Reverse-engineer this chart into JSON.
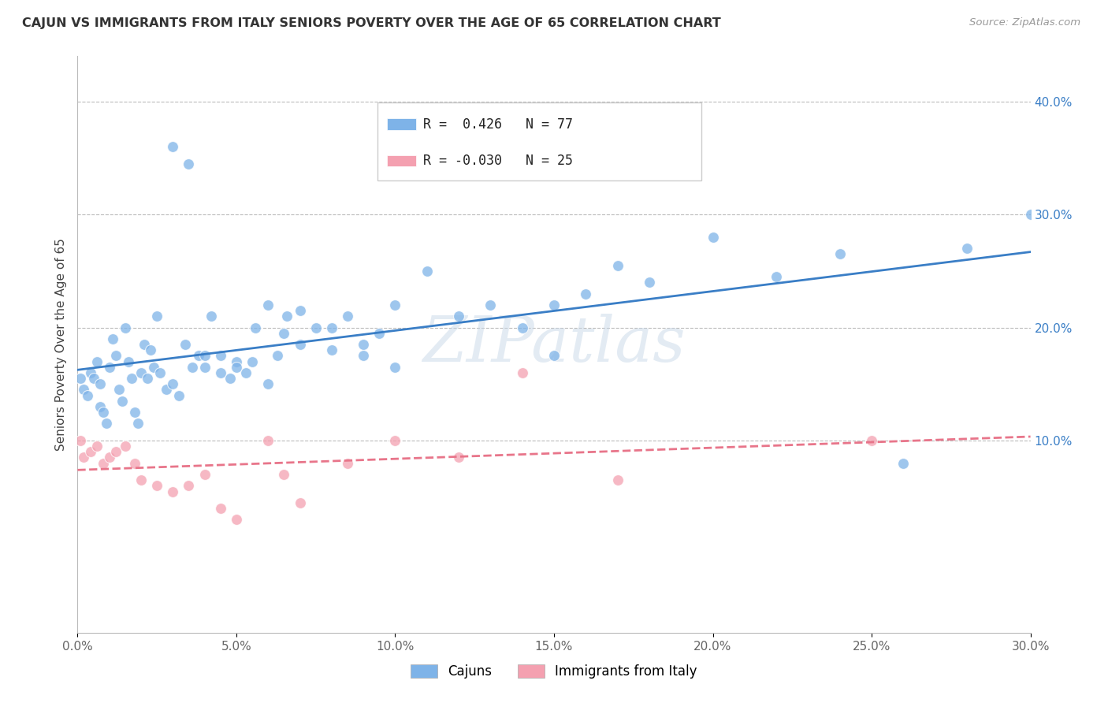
{
  "title": "CAJUN VS IMMIGRANTS FROM ITALY SENIORS POVERTY OVER THE AGE OF 65 CORRELATION CHART",
  "source": "Source: ZipAtlas.com",
  "ylabel": "Seniors Poverty Over the Age of 65",
  "cajun_R": 0.426,
  "cajun_N": 77,
  "italy_R": -0.03,
  "italy_N": 25,
  "cajun_color": "#7EB3E8",
  "italy_color": "#F4A0B0",
  "regression_cajun_color": "#3A7EC6",
  "regression_italy_color": "#E8758A",
  "watermark_color": "#C8D8E8",
  "background_color": "#FFFFFF",
  "grid_color": "#BBBBBB",
  "xlim": [
    0.0,
    0.3
  ],
  "ylim": [
    -0.07,
    0.44
  ],
  "y_ticks": [
    0.1,
    0.2,
    0.3,
    0.4
  ],
  "x_ticks": [
    0.0,
    0.05,
    0.1,
    0.15,
    0.2,
    0.25,
    0.3
  ],
  "cajun_x": [
    0.001,
    0.002,
    0.003,
    0.004,
    0.005,
    0.006,
    0.007,
    0.007,
    0.008,
    0.009,
    0.01,
    0.011,
    0.012,
    0.013,
    0.014,
    0.015,
    0.016,
    0.017,
    0.018,
    0.019,
    0.02,
    0.021,
    0.022,
    0.023,
    0.024,
    0.025,
    0.026,
    0.028,
    0.03,
    0.032,
    0.034,
    0.036,
    0.038,
    0.04,
    0.042,
    0.045,
    0.048,
    0.05,
    0.053,
    0.056,
    0.06,
    0.063,
    0.066,
    0.07,
    0.075,
    0.08,
    0.085,
    0.09,
    0.095,
    0.1,
    0.03,
    0.035,
    0.04,
    0.045,
    0.05,
    0.055,
    0.06,
    0.065,
    0.07,
    0.08,
    0.09,
    0.1,
    0.11,
    0.12,
    0.13,
    0.14,
    0.15,
    0.16,
    0.18,
    0.2,
    0.22,
    0.24,
    0.26,
    0.28,
    0.3,
    0.15,
    0.17
  ],
  "cajun_y": [
    0.155,
    0.145,
    0.14,
    0.16,
    0.155,
    0.17,
    0.15,
    0.13,
    0.125,
    0.115,
    0.165,
    0.19,
    0.175,
    0.145,
    0.135,
    0.2,
    0.17,
    0.155,
    0.125,
    0.115,
    0.16,
    0.185,
    0.155,
    0.18,
    0.165,
    0.21,
    0.16,
    0.145,
    0.15,
    0.14,
    0.185,
    0.165,
    0.175,
    0.165,
    0.21,
    0.175,
    0.155,
    0.17,
    0.16,
    0.2,
    0.15,
    0.175,
    0.21,
    0.215,
    0.2,
    0.18,
    0.21,
    0.175,
    0.195,
    0.22,
    0.36,
    0.345,
    0.175,
    0.16,
    0.165,
    0.17,
    0.22,
    0.195,
    0.185,
    0.2,
    0.185,
    0.165,
    0.25,
    0.21,
    0.22,
    0.2,
    0.22,
    0.23,
    0.24,
    0.28,
    0.245,
    0.265,
    0.08,
    0.27,
    0.3,
    0.175,
    0.255
  ],
  "italy_x": [
    0.001,
    0.002,
    0.004,
    0.006,
    0.008,
    0.01,
    0.012,
    0.015,
    0.018,
    0.02,
    0.025,
    0.03,
    0.035,
    0.04,
    0.045,
    0.05,
    0.06,
    0.065,
    0.07,
    0.085,
    0.1,
    0.12,
    0.14,
    0.17,
    0.25
  ],
  "italy_y": [
    0.1,
    0.085,
    0.09,
    0.095,
    0.08,
    0.085,
    0.09,
    0.095,
    0.08,
    0.065,
    0.06,
    0.055,
    0.06,
    0.07,
    0.04,
    0.03,
    0.1,
    0.07,
    0.045,
    0.08,
    0.1,
    0.085,
    0.16,
    0.065,
    0.1
  ]
}
